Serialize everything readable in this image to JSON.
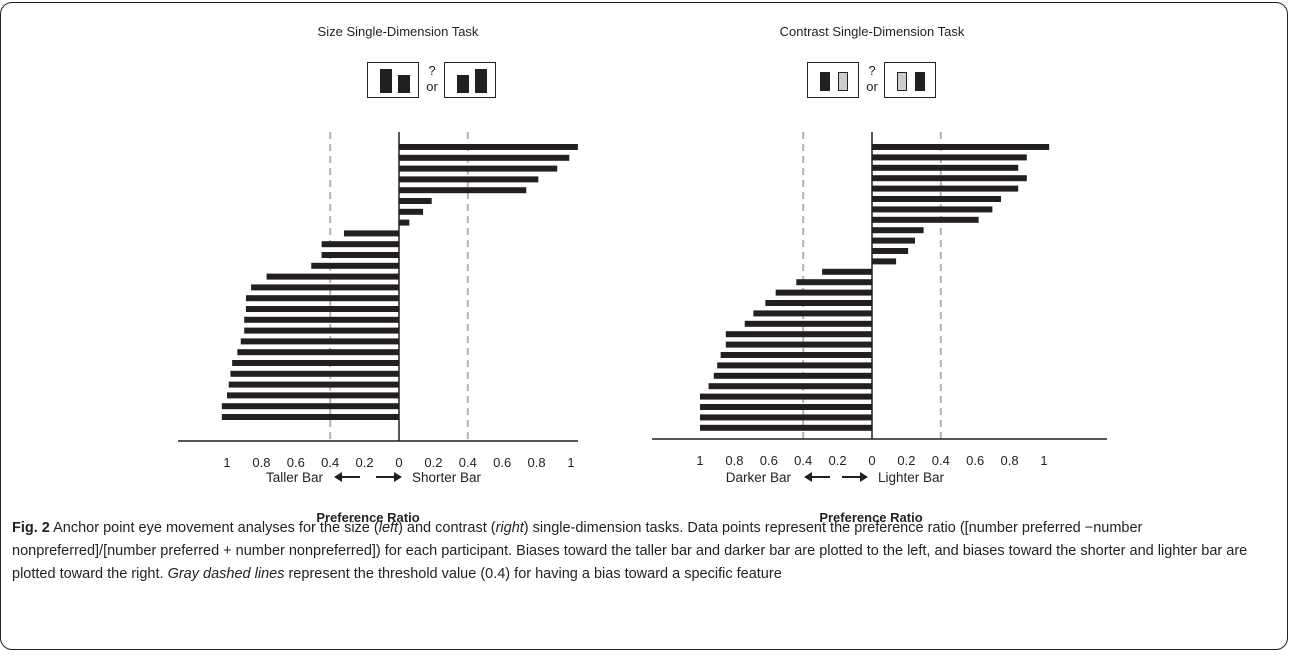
{
  "panels": [
    {
      "title": "Size Single-Dimension Task",
      "choice_question": "?",
      "choice_or": "or",
      "left_label": "Taller Bar",
      "right_label": "Shorter Bar",
      "xlabel": "Preference Ratio",
      "colors": {
        "bar": "#231f20",
        "dashed": "#b3b3b3",
        "light_bar": "#cccccc"
      }
    },
    {
      "title": "Contrast Single-Dimension Task",
      "choice_question": "?",
      "choice_or": "or",
      "left_label": "Darker Bar",
      "right_label": "Lighter Bar",
      "xlabel": "Preference Ratio",
      "colors": {
        "bar": "#231f20",
        "dashed": "#b3b3b3",
        "light_bar": "#cccccc"
      }
    }
  ],
  "chart_data": [
    {
      "type": "bar",
      "orientation": "horizontal",
      "title": "Size Single-Dimension Task",
      "xlabel": "Preference Ratio",
      "xlim": [
        -1.2,
        1.05
      ],
      "tick_values": [
        -1,
        -0.8,
        -0.6,
        -0.4,
        -0.2,
        0,
        0.2,
        0.4,
        0.6,
        0.8,
        1
      ],
      "tick_labels": [
        "1",
        "0.8",
        "0.6",
        "0.4",
        "0.2",
        "0",
        "0.2",
        "0.4",
        "0.6",
        "0.8",
        "1"
      ],
      "threshold": [
        -0.4,
        0.4
      ],
      "grid": false,
      "values": [
        1.04,
        0.99,
        0.92,
        0.81,
        0.74,
        0.19,
        0.14,
        0.06,
        -0.32,
        -0.45,
        -0.45,
        -0.51,
        -0.77,
        -0.86,
        -0.89,
        -0.89,
        -0.9,
        -0.9,
        -0.92,
        -0.94,
        -0.97,
        -0.98,
        -0.99,
        -1.0,
        -1.03,
        -1.03
      ]
    },
    {
      "type": "bar",
      "orientation": "horizontal",
      "title": "Contrast Single-Dimension Task",
      "xlabel": "Preference Ratio",
      "xlim": [
        -1.2,
        1.05
      ],
      "tick_values": [
        -1,
        -0.8,
        -0.6,
        -0.4,
        -0.2,
        0,
        0.2,
        0.4,
        0.6,
        0.8,
        1
      ],
      "tick_labels": [
        "1",
        "0.8",
        "0.6",
        "0.4",
        "0.2",
        "0",
        "0.2",
        "0.4",
        "0.6",
        "0.8",
        "1"
      ],
      "threshold": [
        -0.4,
        0.4
      ],
      "grid": false,
      "values": [
        1.03,
        0.9,
        0.85,
        0.9,
        0.85,
        0.75,
        0.7,
        0.62,
        0.3,
        0.25,
        0.21,
        0.14,
        -0.29,
        -0.44,
        -0.56,
        -0.62,
        -0.69,
        -0.74,
        -0.85,
        -0.85,
        -0.88,
        -0.9,
        -0.92,
        -0.95,
        -1.0,
        -1.0,
        -1.0,
        -1.0
      ]
    }
  ],
  "caption": {
    "fig_label": "Fig. 2",
    "part1": " Anchor point eye movement analyses for the size (",
    "left": "left",
    "part2": ") and contrast (",
    "right": "right",
    "part3": ") single-dimension tasks. Data points represent the preference ratio ([number preferred −number nonpreferred]/[number preferred + number nonpreferred]) for each participant. Biases toward the taller bar and darker bar are plotted to the left, and biases toward the shorter and lighter bar are plotted toward the right. ",
    "italic": "Gray dashed lines",
    "part4": " represent the threshold value (0.4) for having a bias toward a specific feature"
  }
}
